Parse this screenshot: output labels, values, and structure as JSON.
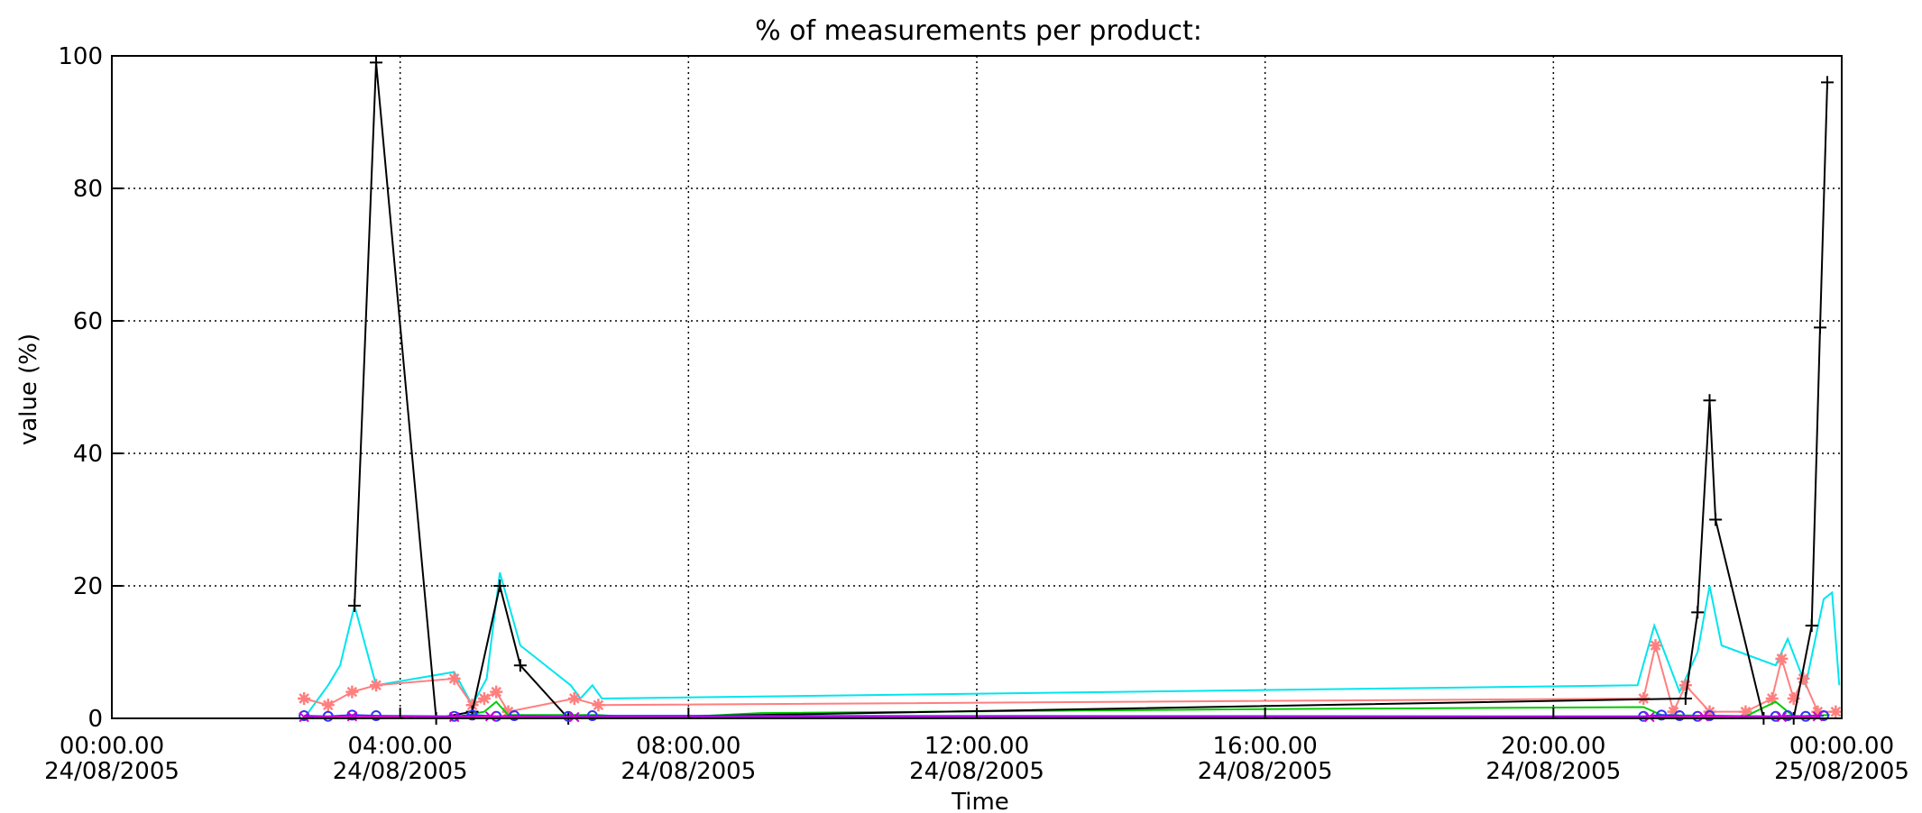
{
  "chart_data": {
    "type": "line",
    "title": "% of measurements per product:",
    "xlabel": "Time",
    "ylabel": "value (%)",
    "ylim": [
      0,
      100
    ],
    "xlim": [
      "2005-08-24 00:00",
      "2005-08-25 00:00"
    ],
    "grid": true,
    "legend": "none",
    "yticks": [
      0,
      20,
      40,
      60,
      80,
      100
    ],
    "xticks": [
      {
        "t": "2005-08-24 00:00",
        "label1": "00:00.00",
        "label2": "24/08/2005"
      },
      {
        "t": "2005-08-24 04:00",
        "label1": "04:00.00",
        "label2": "24/08/2005"
      },
      {
        "t": "2005-08-24 08:00",
        "label1": "08:00.00",
        "label2": "24/08/2005"
      },
      {
        "t": "2005-08-24 12:00",
        "label1": "12:00.00",
        "label2": "24/08/2005"
      },
      {
        "t": "2005-08-24 16:00",
        "label1": "16:00.00",
        "label2": "24/08/2005"
      },
      {
        "t": "2005-08-24 20:00",
        "label1": "20:00.00",
        "label2": "24/08/2005"
      },
      {
        "t": "2005-08-25 00:00",
        "label1": "00:00.00",
        "label2": "25/08/2005"
      }
    ],
    "series": [
      {
        "color": "#00e5ee",
        "marker": "none",
        "points": [
          [
            "2005-08-24 02:40",
            0
          ],
          [
            "2005-08-24 03:00",
            5
          ],
          [
            "2005-08-24 03:10",
            8
          ],
          [
            "2005-08-24 03:22",
            17
          ],
          [
            "2005-08-24 03:40",
            5
          ],
          [
            "2005-08-24 04:45",
            7
          ],
          [
            "2005-08-24 05:00",
            2
          ],
          [
            "2005-08-24 05:12",
            6
          ],
          [
            "2005-08-24 05:23",
            22
          ],
          [
            "2005-08-24 05:40",
            11
          ],
          [
            "2005-08-24 06:22",
            5
          ],
          [
            "2005-08-24 06:30",
            3
          ],
          [
            "2005-08-24 06:40",
            5
          ],
          [
            "2005-08-24 06:48",
            3
          ],
          [
            "2005-08-24 21:10",
            5
          ],
          [
            "2005-08-24 21:24",
            14
          ],
          [
            "2005-08-24 21:45",
            4
          ],
          [
            "2005-08-24 22:00",
            10
          ],
          [
            "2005-08-24 22:10",
            20
          ],
          [
            "2005-08-24 22:20",
            11
          ],
          [
            "2005-08-24 23:05",
            8
          ],
          [
            "2005-08-24 23:15",
            12
          ],
          [
            "2005-08-24 23:30",
            5
          ],
          [
            "2005-08-24 23:45",
            18
          ],
          [
            "2005-08-24 23:52",
            19
          ],
          [
            "2005-08-24 23:58",
            5
          ]
        ]
      },
      {
        "color": "#ff7f7f",
        "marker": "star",
        "points": [
          [
            "2005-08-24 02:40",
            3
          ],
          [
            "2005-08-24 03:00",
            2
          ],
          [
            "2005-08-24 03:20",
            4
          ],
          [
            "2005-08-24 03:40",
            5
          ],
          [
            "2005-08-24 04:45",
            6
          ],
          [
            "2005-08-24 05:00",
            2
          ],
          [
            "2005-08-24 05:10",
            3
          ],
          [
            "2005-08-24 05:20",
            4
          ],
          [
            "2005-08-24 05:30",
            1
          ],
          [
            "2005-08-24 06:25",
            3
          ],
          [
            "2005-08-24 06:45",
            2
          ],
          [
            "2005-08-24 21:15",
            3
          ],
          [
            "2005-08-24 21:25",
            11
          ],
          [
            "2005-08-24 21:40",
            1
          ],
          [
            "2005-08-24 21:50",
            5
          ],
          [
            "2005-08-24 22:10",
            1
          ],
          [
            "2005-08-24 22:40",
            1
          ],
          [
            "2005-08-24 23:02",
            3
          ],
          [
            "2005-08-24 23:10",
            9
          ],
          [
            "2005-08-24 23:20",
            3
          ],
          [
            "2005-08-24 23:28",
            6
          ],
          [
            "2005-08-24 23:40",
            1
          ],
          [
            "2005-08-24 23:55",
            1
          ]
        ]
      },
      {
        "color": "#00cc00",
        "marker": "none",
        "points": [
          [
            "2005-08-24 04:50",
            0.3
          ],
          [
            "2005-08-24 05:10",
            1
          ],
          [
            "2005-08-24 05:20",
            2.5
          ],
          [
            "2005-08-24 05:30",
            0.5
          ],
          [
            "2005-08-24 06:45",
            0.5
          ],
          [
            "2005-08-24 07:30",
            0
          ],
          [
            "2005-08-24 09:00",
            0.8
          ],
          [
            "2005-08-24 16:00",
            1.4
          ],
          [
            "2005-08-24 21:15",
            1.7
          ],
          [
            "2005-08-24 21:30",
            0.5
          ],
          [
            "2005-08-24 22:40",
            0.3
          ],
          [
            "2005-08-24 23:05",
            2.5
          ],
          [
            "2005-08-24 23:20",
            0.3
          ],
          [
            "2005-08-24 23:50",
            0.5
          ]
        ]
      },
      {
        "color": "#000000",
        "marker": "plus",
        "points": [
          [
            "2005-08-24 03:22",
            17
          ],
          [
            "2005-08-24 03:40",
            99
          ],
          [
            "2005-08-24 04:30",
            0
          ],
          [
            "2005-08-24 05:00",
            1
          ],
          [
            "2005-08-24 05:23",
            20
          ],
          [
            "2005-08-24 05:40",
            8
          ],
          [
            "2005-08-24 06:20",
            0
          ],
          [
            "2005-08-24 21:50",
            3
          ],
          [
            "2005-08-24 22:00",
            16
          ],
          [
            "2005-08-24 22:10",
            48
          ],
          [
            "2005-08-24 22:15",
            30
          ],
          [
            "2005-08-24 22:55",
            0
          ],
          [
            "2005-08-24 23:20",
            0
          ],
          [
            "2005-08-24 23:35",
            14
          ],
          [
            "2005-08-24 23:42",
            59
          ],
          [
            "2005-08-24 23:48",
            96
          ]
        ]
      },
      {
        "color": "#3333ff",
        "marker": "circle",
        "points": [
          [
            "2005-08-24 02:40",
            0.4
          ],
          [
            "2005-08-24 03:00",
            0.3
          ],
          [
            "2005-08-24 03:20",
            0.5
          ],
          [
            "2005-08-24 03:40",
            0.4
          ],
          [
            "2005-08-24 04:45",
            0.3
          ],
          [
            "2005-08-24 05:00",
            0.5
          ],
          [
            "2005-08-24 05:20",
            0.3
          ],
          [
            "2005-08-24 05:35",
            0.4
          ],
          [
            "2005-08-24 06:20",
            0.3
          ],
          [
            "2005-08-24 06:40",
            0.4
          ],
          [
            "2005-08-24 21:15",
            0.3
          ],
          [
            "2005-08-24 21:30",
            0.5
          ],
          [
            "2005-08-24 21:45",
            0.4
          ],
          [
            "2005-08-24 22:00",
            0.3
          ],
          [
            "2005-08-24 22:10",
            0.4
          ],
          [
            "2005-08-24 23:05",
            0.3
          ],
          [
            "2005-08-24 23:15",
            0.4
          ],
          [
            "2005-08-24 23:30",
            0.3
          ],
          [
            "2005-08-24 23:45",
            0.4
          ]
        ]
      },
      {
        "color": "#cc00cc",
        "marker": "x",
        "points": [
          [
            "2005-08-24 02:40",
            0.2
          ],
          [
            "2005-08-24 03:20",
            0.3
          ],
          [
            "2005-08-24 04:45",
            0.2
          ],
          [
            "2005-08-24 05:15",
            0.3
          ],
          [
            "2005-08-24 06:25",
            0.2
          ],
          [
            "2005-08-24 21:20",
            0.2
          ],
          [
            "2005-08-24 22:05",
            0.3
          ],
          [
            "2005-08-24 23:10",
            0.2
          ],
          [
            "2005-08-24 23:40",
            0.3
          ]
        ]
      }
    ]
  }
}
